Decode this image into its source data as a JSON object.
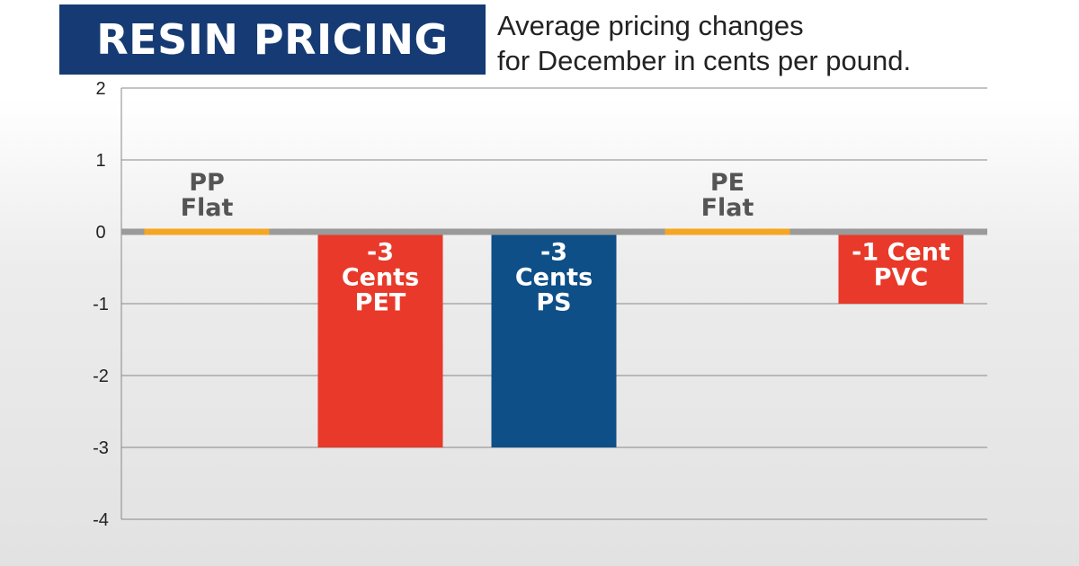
{
  "title": "RESIN PRICING",
  "subtitle_lines": [
    "Average pricing changes",
    "for December in cents per pound."
  ],
  "colors": {
    "title_bg": "#163a73",
    "flat": "#f5a623",
    "red": "#e8392a",
    "blue": "#0e4f88",
    "zero_line": "#9a9a9a",
    "grid": "#888888",
    "label_dark": "#555555"
  },
  "chart_data": {
    "type": "bar",
    "title": "RESIN PRICING",
    "subtitle": "Average pricing changes for December in cents per pound.",
    "xlabel": "",
    "ylabel": "",
    "ylim": [
      -4,
      2
    ],
    "yticks": [
      2,
      1,
      0,
      -1,
      -2,
      -3,
      -4
    ],
    "grid": true,
    "categories": [
      "PP",
      "PET",
      "PS",
      "PE",
      "PVC"
    ],
    "values": [
      0,
      -3,
      -3,
      0,
      -1
    ],
    "bar_colors": [
      "#f5a623",
      "#e8392a",
      "#0e4f88",
      "#f5a623",
      "#e8392a"
    ],
    "annotations": [
      [
        "PP",
        "Flat"
      ],
      [
        "-3",
        "Cents",
        "PET"
      ],
      [
        "-3",
        "Cents",
        "PS"
      ],
      [
        "PE",
        "Flat"
      ],
      [
        "-1 Cent",
        "PVC"
      ]
    ]
  }
}
